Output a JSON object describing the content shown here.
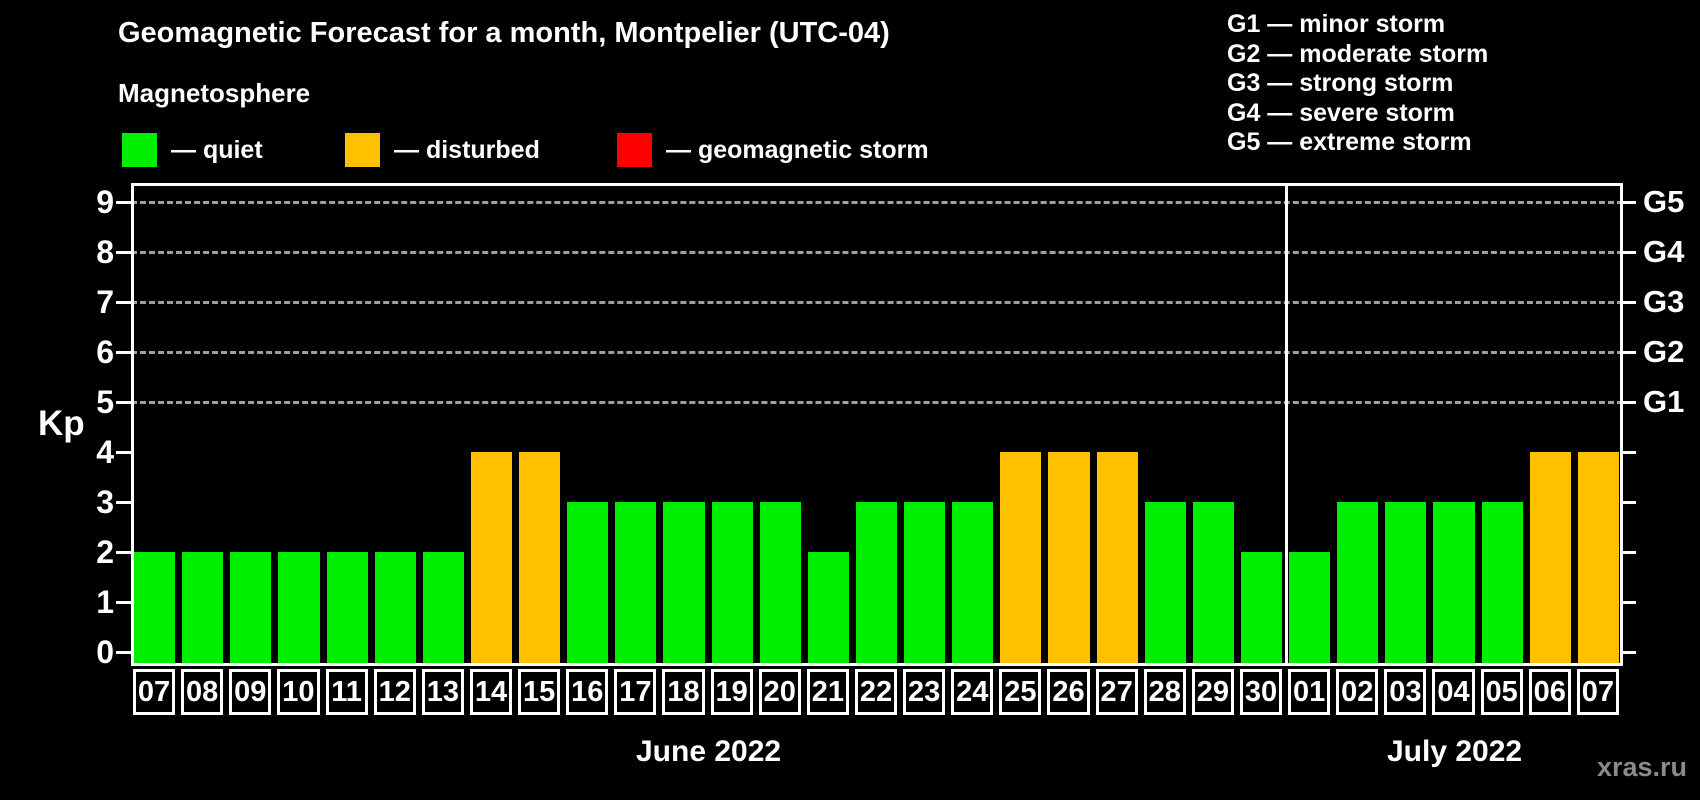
{
  "title": "Geomagnetic Forecast for a month, Montpelier (UTC-04)",
  "subtitle": "Magnetosphere",
  "legend": {
    "items": [
      {
        "name": "quiet",
        "label": "— quiet",
        "color": "#00ee00"
      },
      {
        "name": "disturbed",
        "label": "— disturbed",
        "color": "#ffc000"
      },
      {
        "name": "storm",
        "label": "— geomagnetic storm",
        "color": "#ff0000"
      }
    ]
  },
  "g_scale_legend": {
    "lines": [
      "G1 — minor storm",
      "G2 — moderate storm",
      "G3 — strong storm",
      "G4 — severe storm",
      "G5 — extreme storm"
    ]
  },
  "watermark": "xras.ru",
  "chart_data": {
    "type": "bar",
    "ylabel": "Kp",
    "ylim": [
      0,
      9.3
    ],
    "yticks": [
      0,
      1,
      2,
      3,
      4,
      5,
      6,
      7,
      8,
      9
    ],
    "grid_dashed_at": [
      5,
      6,
      7,
      8,
      9
    ],
    "grid": true,
    "legend_position": "top-left",
    "right_axis": [
      {
        "label": "G1",
        "kp": 5
      },
      {
        "label": "G2",
        "kp": 6
      },
      {
        "label": "G3",
        "kp": 7
      },
      {
        "label": "G4",
        "kp": 8
      },
      {
        "label": "G5",
        "kp": 9
      }
    ],
    "state_colors": {
      "quiet": "#00ee00",
      "disturbed": "#ffc000",
      "storm": "#ff0000"
    },
    "months": [
      {
        "label": "June 2022",
        "days": [
          {
            "date": "07",
            "kp": 2,
            "state": "quiet"
          },
          {
            "date": "08",
            "kp": 2,
            "state": "quiet"
          },
          {
            "date": "09",
            "kp": 2,
            "state": "quiet"
          },
          {
            "date": "10",
            "kp": 2,
            "state": "quiet"
          },
          {
            "date": "11",
            "kp": 2,
            "state": "quiet"
          },
          {
            "date": "12",
            "kp": 2,
            "state": "quiet"
          },
          {
            "date": "13",
            "kp": 2,
            "state": "quiet"
          },
          {
            "date": "14",
            "kp": 4,
            "state": "disturbed"
          },
          {
            "date": "15",
            "kp": 4,
            "state": "disturbed"
          },
          {
            "date": "16",
            "kp": 3,
            "state": "quiet"
          },
          {
            "date": "17",
            "kp": 3,
            "state": "quiet"
          },
          {
            "date": "18",
            "kp": 3,
            "state": "quiet"
          },
          {
            "date": "19",
            "kp": 3,
            "state": "quiet"
          },
          {
            "date": "20",
            "kp": 3,
            "state": "quiet"
          },
          {
            "date": "21",
            "kp": 2,
            "state": "quiet"
          },
          {
            "date": "22",
            "kp": 3,
            "state": "quiet"
          },
          {
            "date": "23",
            "kp": 3,
            "state": "quiet"
          },
          {
            "date": "24",
            "kp": 3,
            "state": "quiet"
          },
          {
            "date": "25",
            "kp": 4,
            "state": "disturbed"
          },
          {
            "date": "26",
            "kp": 4,
            "state": "disturbed"
          },
          {
            "date": "27",
            "kp": 4,
            "state": "disturbed"
          },
          {
            "date": "28",
            "kp": 3,
            "state": "quiet"
          },
          {
            "date": "29",
            "kp": 3,
            "state": "quiet"
          },
          {
            "date": "30",
            "kp": 2,
            "state": "quiet"
          }
        ]
      },
      {
        "label": "July 2022",
        "days": [
          {
            "date": "01",
            "kp": 2,
            "state": "quiet"
          },
          {
            "date": "02",
            "kp": 3,
            "state": "quiet"
          },
          {
            "date": "03",
            "kp": 3,
            "state": "quiet"
          },
          {
            "date": "04",
            "kp": 3,
            "state": "quiet"
          },
          {
            "date": "05",
            "kp": 3,
            "state": "quiet"
          },
          {
            "date": "06",
            "kp": 4,
            "state": "disturbed"
          },
          {
            "date": "07",
            "kp": 4,
            "state": "disturbed"
          }
        ]
      }
    ]
  }
}
